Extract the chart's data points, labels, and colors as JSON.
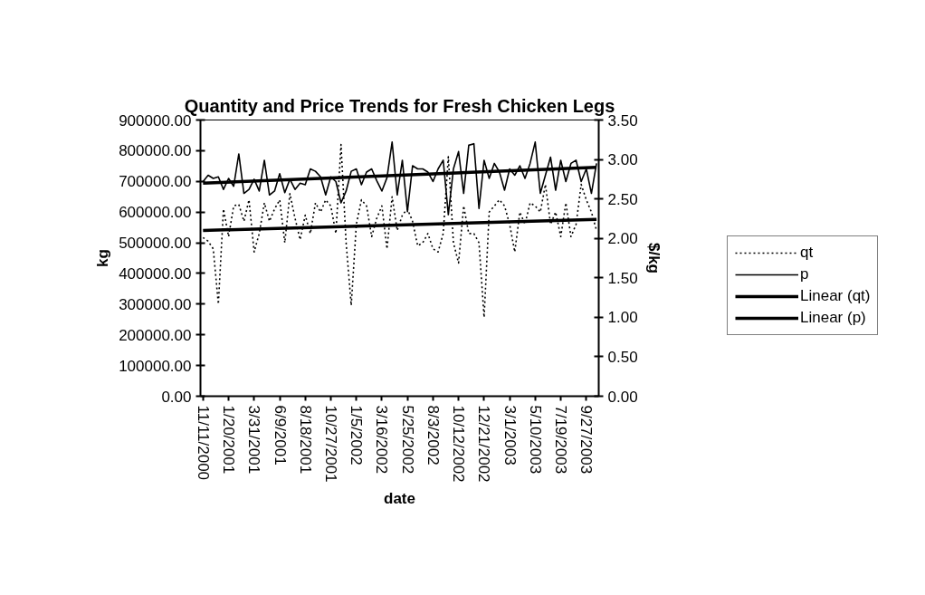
{
  "chart_data": {
    "type": "line",
    "title": "Quantity and Price Trends for Fresh Chicken Legs",
    "xlabel": "date",
    "ylabel": "kg",
    "y2label": "$/kg",
    "x": [
      "2000-11-11",
      "2000-11-25",
      "2000-12-09",
      "2000-12-23",
      "2001-01-06",
      "2001-01-20",
      "2001-02-03",
      "2001-02-17",
      "2001-03-03",
      "2001-03-17",
      "2001-03-31",
      "2001-04-14",
      "2001-04-28",
      "2001-05-12",
      "2001-05-26",
      "2001-06-09",
      "2001-06-23",
      "2001-07-07",
      "2001-07-21",
      "2001-08-04",
      "2001-08-18",
      "2001-09-01",
      "2001-09-15",
      "2001-09-29",
      "2001-10-13",
      "2001-10-27",
      "2001-11-10",
      "2001-11-24",
      "2001-12-08",
      "2001-12-22",
      "2002-01-05",
      "2002-01-19",
      "2002-02-02",
      "2002-02-16",
      "2002-03-02",
      "2002-03-16",
      "2002-03-30",
      "2002-04-13",
      "2002-04-27",
      "2002-05-11",
      "2002-05-25",
      "2002-06-08",
      "2002-06-22",
      "2002-07-06",
      "2002-07-20",
      "2002-08-03",
      "2002-08-17",
      "2002-08-31",
      "2002-09-14",
      "2002-09-28",
      "2002-10-12",
      "2002-10-26",
      "2002-11-09",
      "2002-11-23",
      "2002-12-07",
      "2002-12-21",
      "2003-01-04",
      "2003-01-18",
      "2003-02-01",
      "2003-02-15",
      "2003-03-01",
      "2003-03-15",
      "2003-03-29",
      "2003-04-12",
      "2003-04-26",
      "2003-05-10",
      "2003-05-24",
      "2003-06-07",
      "2003-06-21",
      "2003-07-05",
      "2003-07-19",
      "2003-08-02",
      "2003-08-16",
      "2003-08-30",
      "2003-09-13",
      "2003-09-27",
      "2003-10-11",
      "2003-10-25"
    ],
    "xlim": [
      "2000-11-04",
      "2003-10-31"
    ],
    "xticks": [
      {
        "value": "2000-11-11",
        "label": "11/11/2000"
      },
      {
        "value": "2001-01-20",
        "label": "1/20/2001"
      },
      {
        "value": "2001-03-31",
        "label": "3/31/2001"
      },
      {
        "value": "2001-06-09",
        "label": "6/9/2001"
      },
      {
        "value": "2001-08-18",
        "label": "8/18/2001"
      },
      {
        "value": "2001-10-27",
        "label": "10/27/2001"
      },
      {
        "value": "2002-01-05",
        "label": "1/5/2002"
      },
      {
        "value": "2002-03-16",
        "label": "3/16/2002"
      },
      {
        "value": "2002-05-25",
        "label": "5/25/2002"
      },
      {
        "value": "2002-08-03",
        "label": "8/3/2002"
      },
      {
        "value": "2002-10-12",
        "label": "10/12/2002"
      },
      {
        "value": "2002-12-21",
        "label": "12/21/2002"
      },
      {
        "value": "2003-03-01",
        "label": "3/1/2003"
      },
      {
        "value": "2003-05-10",
        "label": "5/10/2003"
      },
      {
        "value": "2003-07-19",
        "label": "7/19/2003"
      },
      {
        "value": "2003-09-27",
        "label": "9/27/2003"
      }
    ],
    "ylim": [
      0,
      900000
    ],
    "yticks": [
      {
        "value": 0,
        "label": "0.00"
      },
      {
        "value": 100000,
        "label": "100000.00"
      },
      {
        "value": 200000,
        "label": "200000.00"
      },
      {
        "value": 300000,
        "label": "300000.00"
      },
      {
        "value": 400000,
        "label": "400000.00"
      },
      {
        "value": 500000,
        "label": "500000.00"
      },
      {
        "value": 600000,
        "label": "600000.00"
      },
      {
        "value": 700000,
        "label": "700000.00"
      },
      {
        "value": 800000,
        "label": "800000.00"
      },
      {
        "value": 900000,
        "label": "900000.00"
      }
    ],
    "y2lim": [
      0,
      3.5
    ],
    "y2ticks": [
      {
        "value": 0,
        "label": "0.00"
      },
      {
        "value": 0.5,
        "label": "0.50"
      },
      {
        "value": 1,
        "label": "1.00"
      },
      {
        "value": 1.5,
        "label": "1.50"
      },
      {
        "value": 2,
        "label": "2.00"
      },
      {
        "value": 2.5,
        "label": "2.50"
      },
      {
        "value": 3,
        "label": "3.00"
      },
      {
        "value": 3.5,
        "label": "3.50"
      }
    ],
    "grid": false,
    "legend": "right",
    "series": [
      {
        "name": "qt",
        "color": "#000000",
        "line_style": "dotted",
        "values": [
          517000,
          505000,
          480000,
          300000,
          610000,
          520000,
          620000,
          625000,
          570000,
          640000,
          470000,
          530000,
          630000,
          570000,
          610000,
          640000,
          500000,
          660000,
          580000,
          510000,
          590000,
          530000,
          630000,
          600000,
          640000,
          620000,
          530000,
          820000,
          500000,
          296000,
          560000,
          640000,
          620000,
          520000,
          580000,
          620000,
          480000,
          650000,
          540000,
          590000,
          610000,
          570000,
          490000,
          500000,
          530000,
          480000,
          470000,
          530000,
          780000,
          500000,
          434000,
          620000,
          530000,
          530000,
          500000,
          257000,
          600000,
          620000,
          640000,
          620000,
          560000,
          470000,
          600000,
          560000,
          630000,
          620000,
          600000,
          690000,
          560000,
          600000,
          520000,
          630000,
          520000,
          560000,
          690000,
          640000,
          600000,
          540000
        ]
      },
      {
        "name": "p",
        "color": "#000000",
        "line_style": "solid",
        "axis": "y2",
        "values": [
          2.72,
          2.8,
          2.76,
          2.78,
          2.62,
          2.76,
          2.66,
          3.07,
          2.57,
          2.62,
          2.75,
          2.6,
          2.99,
          2.55,
          2.6,
          2.82,
          2.58,
          2.75,
          2.62,
          2.7,
          2.68,
          2.88,
          2.85,
          2.78,
          2.55,
          2.78,
          2.72,
          2.45,
          2.6,
          2.85,
          2.88,
          2.68,
          2.84,
          2.88,
          2.73,
          2.6,
          2.77,
          3.22,
          2.55,
          2.99,
          2.34,
          2.92,
          2.88,
          2.88,
          2.84,
          2.72,
          2.88,
          2.99,
          2.3,
          2.88,
          3.1,
          2.57,
          3.18,
          3.2,
          2.38,
          2.99,
          2.76,
          2.95,
          2.84,
          2.61,
          2.88,
          2.8,
          2.92,
          2.76,
          2.95,
          3.22,
          2.57,
          2.8,
          3.03,
          2.61,
          2.99,
          2.72,
          2.95,
          2.99,
          2.72,
          2.88,
          2.57,
          2.95
        ]
      },
      {
        "name": "Linear (qt)",
        "color": "#000000",
        "line_style": "solid",
        "x": [
          "2000-11-11",
          "2003-10-25"
        ],
        "values": [
          540000,
          576000
        ]
      },
      {
        "name": "Linear (p)",
        "color": "#000000",
        "line_style": "solid",
        "axis": "y2",
        "x": [
          "2000-11-11",
          "2003-10-25"
        ],
        "values": [
          2.7,
          2.9
        ]
      }
    ]
  }
}
